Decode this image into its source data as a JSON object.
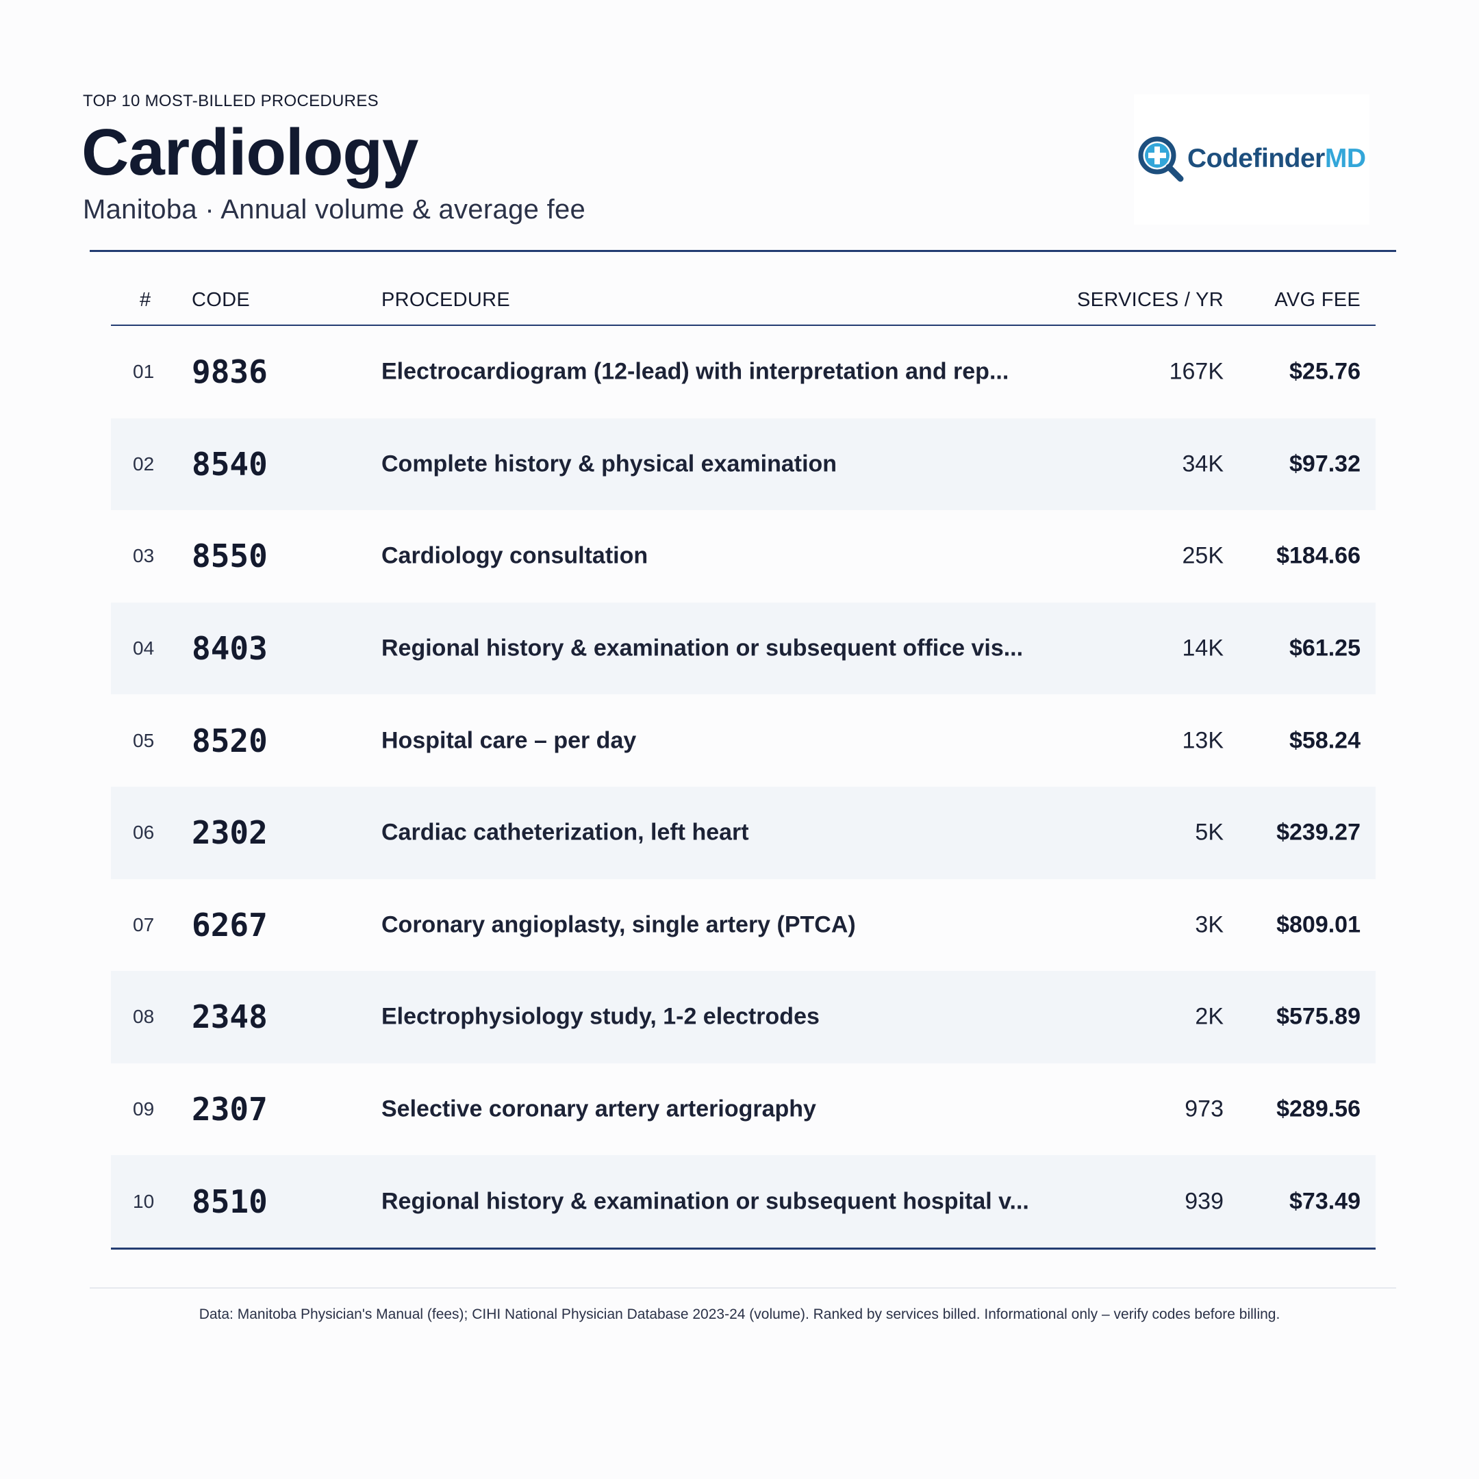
{
  "header": {
    "eyebrow": "TOP 10 MOST-BILLED PROCEDURES",
    "title": "Cardiology",
    "subtitle": "Manitoba · Annual volume & average fee"
  },
  "logo": {
    "name_part1": "Codefinder",
    "name_part2": "MD",
    "colors": {
      "dark": "#1d4f7e",
      "light": "#33a6d9"
    },
    "icon": "magnifier-plus-icon"
  },
  "table": {
    "columns": {
      "rank": "#",
      "code": "CODE",
      "procedure": "PROCEDURE",
      "services": "SERVICES / YR",
      "fee": "AVG FEE"
    },
    "rows": [
      {
        "rank": "01",
        "code": "9836",
        "procedure": "Electrocardiogram (12-lead) with interpretation and rep...",
        "services": "167K",
        "fee": "$25.76"
      },
      {
        "rank": "02",
        "code": "8540",
        "procedure": "Complete history & physical examination",
        "services": "34K",
        "fee": "$97.32"
      },
      {
        "rank": "03",
        "code": "8550",
        "procedure": "Cardiology consultation",
        "services": "25K",
        "fee": "$184.66"
      },
      {
        "rank": "04",
        "code": "8403",
        "procedure": "Regional history & examination or subsequent office vis...",
        "services": "14K",
        "fee": "$61.25"
      },
      {
        "rank": "05",
        "code": "8520",
        "procedure": "Hospital care – per day",
        "services": "13K",
        "fee": "$58.24"
      },
      {
        "rank": "06",
        "code": "2302",
        "procedure": "Cardiac catheterization, left heart",
        "services": "5K",
        "fee": "$239.27"
      },
      {
        "rank": "07",
        "code": "6267",
        "procedure": "Coronary angioplasty, single artery (PTCA)",
        "services": "3K",
        "fee": "$809.01"
      },
      {
        "rank": "08",
        "code": "2348",
        "procedure": "Electrophysiology study, 1-2 electrodes",
        "services": "2K",
        "fee": "$575.89"
      },
      {
        "rank": "09",
        "code": "2307",
        "procedure": "Selective coronary artery arteriography",
        "services": "973",
        "fee": "$289.56"
      },
      {
        "rank": "10",
        "code": "8510",
        "procedure": "Regional history & examination or subsequent hospital v...",
        "services": "939",
        "fee": "$73.49"
      }
    ]
  },
  "footer": {
    "note": "Data: Manitoba Physician's Manual (fees); CIHI National Physician Database 2023-24 (volume). Ranked by services billed. Informational only – verify codes before billing."
  }
}
